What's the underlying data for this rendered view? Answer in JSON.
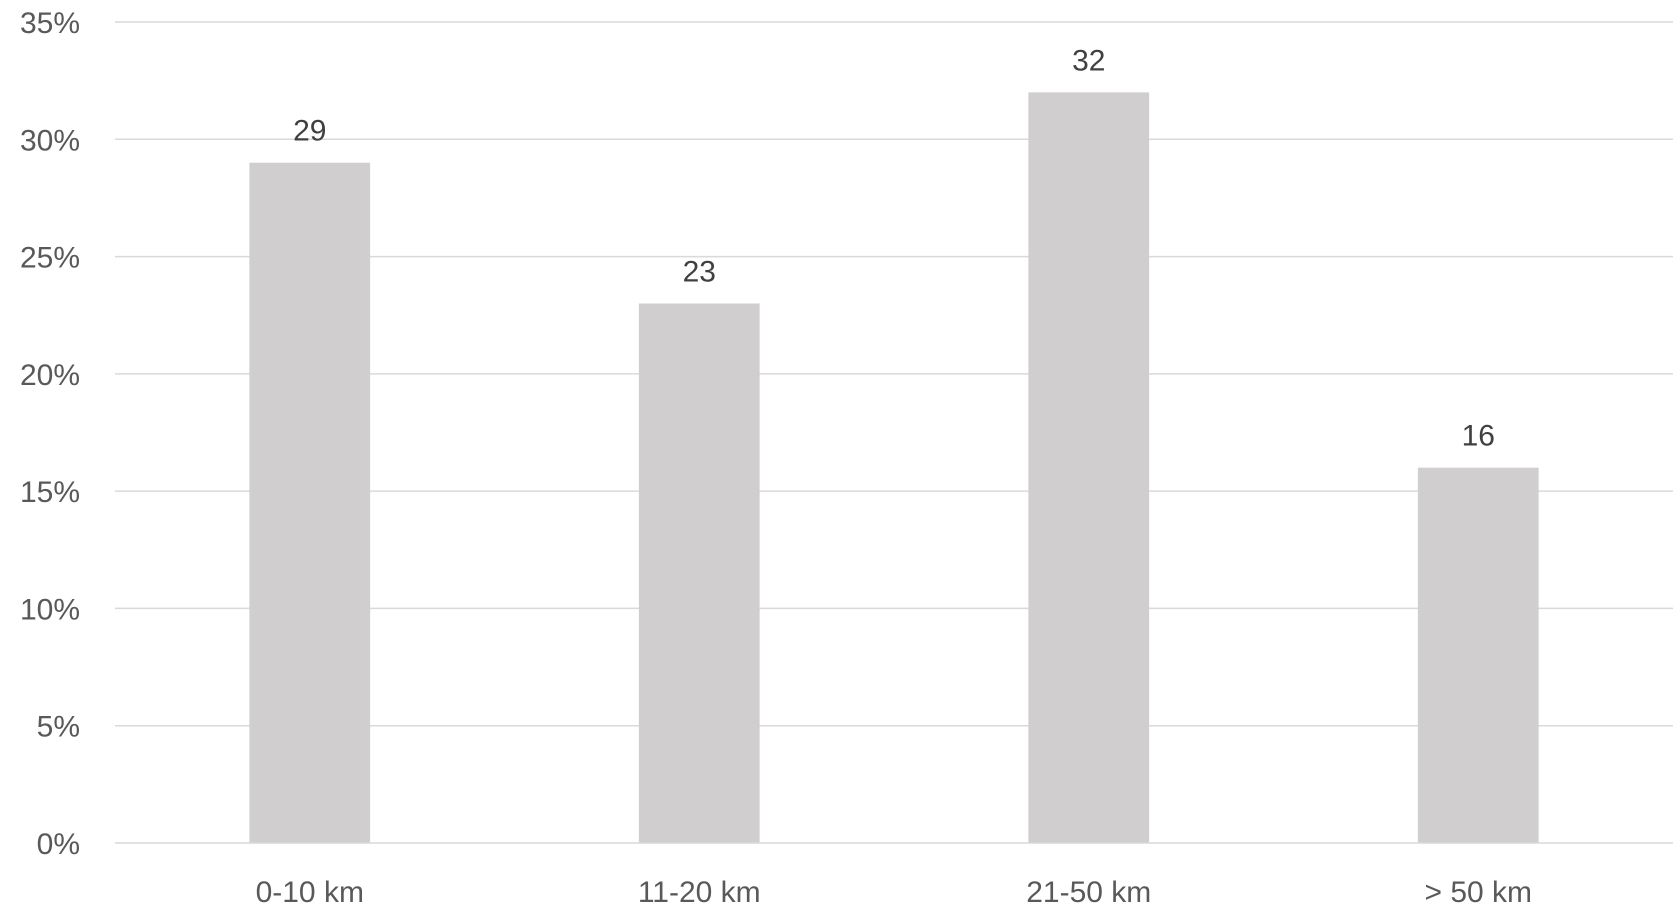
{
  "chart_data": {
    "type": "bar",
    "categories": [
      "0-10 km",
      "11-20 km",
      "21-50 km",
      "> 50 km"
    ],
    "values": [
      29,
      23,
      32,
      16
    ],
    "data_labels": [
      "29",
      "23",
      "32",
      "16"
    ],
    "yticks": [
      "0%",
      "5%",
      "10%",
      "15%",
      "20%",
      "25%",
      "30%",
      "35%"
    ],
    "ylim": [
      0,
      35
    ],
    "ytick_step": 5,
    "title": "",
    "xlabel": "",
    "ylabel": "",
    "grid": true,
    "legend": "none",
    "bar_color": "#d0cece"
  }
}
